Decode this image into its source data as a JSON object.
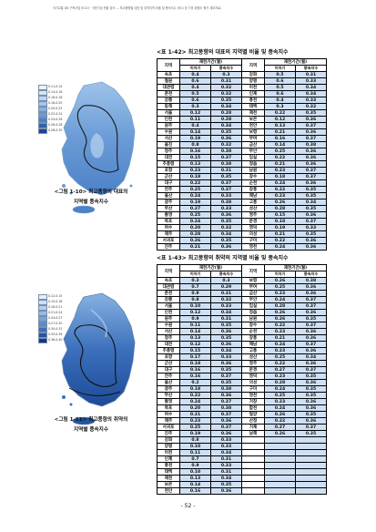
{
  "header_text": "국가교통 DB 구축사업 보고서 · 극한기상 현황 분석 — 최고풍향별 대표 및 취약지역 비율 및 풍속지수 (제 4 장 기후 위험도 평가 세부자료)",
  "section_a": {
    "table_title": "<표 1-42> 최고풍향의 대표의 지역별 비율 및 풍속지수",
    "caption_line1": "<그림 1-10> 최고풍향의 대표의",
    "caption_line2": "지역별 풍속지수",
    "legend": [
      "0.11-0.14",
      "0.14-0.16",
      "0.16-0.18",
      "0.18-0.20",
      "0.20-0.22",
      "0.22-0.24",
      "0.24-0.26",
      "0.26-0.28",
      "0.28-0.30"
    ],
    "legend_colors": [
      "#eaf2fb",
      "#d4e5f6",
      "#bcd6f0",
      "#a4c6ea",
      "#86b1e1",
      "#6a9bd6",
      "#4c82c8",
      "#2e63b2",
      "#17439a"
    ],
    "headers": {
      "region": "지역",
      "group": "재현기간(월)",
      "sub1": "이어기",
      "sub2": "풍속지수"
    },
    "left_rows": [
      [
        "속초",
        "0.4",
        "0.3"
      ],
      [
        "철원",
        "0.6",
        "0.31"
      ],
      [
        "대관령",
        "0.4",
        "0.32"
      ],
      [
        "춘천",
        "0.5",
        "0.32"
      ],
      [
        "강릉",
        "0.6",
        "0.35"
      ],
      [
        "동해",
        "0.3",
        "0.34"
      ],
      [
        "서울",
        "0.12",
        "0.28"
      ],
      [
        "인천",
        "0.11",
        "0.28"
      ],
      [
        "원주",
        "0.4",
        "0.34"
      ],
      [
        "수원",
        "0.14",
        "0.35"
      ],
      [
        "서산",
        "0.19",
        "0.36"
      ],
      [
        "울진",
        "0.8",
        "0.32"
      ],
      [
        "청주",
        "0.16",
        "0.38"
      ],
      [
        "대전",
        "0.15",
        "0.37"
      ],
      [
        "추풍령",
        "0.13",
        "0.38"
      ],
      [
        "포항",
        "0.23",
        "0.31"
      ],
      [
        "군산",
        "0.18",
        "0.35"
      ],
      [
        "대구",
        "0.22",
        "0.37"
      ],
      [
        "전주",
        "0.25",
        "0.37"
      ],
      [
        "울산",
        "0.24",
        "0.33"
      ],
      [
        "광주",
        "0.19",
        "0.38"
      ],
      [
        "부산",
        "0.27",
        "0.33"
      ],
      [
        "통영",
        "0.25",
        "0.36"
      ],
      [
        "목포",
        "0.24",
        "0.35"
      ],
      [
        "여수",
        "0.20",
        "0.32"
      ],
      [
        "제주",
        "0.28",
        "0.34"
      ],
      [
        "서귀포",
        "0.26",
        "0.35"
      ],
      [
        "진주",
        "0.21",
        "0.36"
      ]
    ],
    "right_rows": [
      [
        "강화",
        "0.5",
        "0.31"
      ],
      [
        "양평",
        "0.6",
        "0.33"
      ],
      [
        "이천",
        "0.5",
        "0.34"
      ],
      [
        "인제",
        "0.6",
        "0.34"
      ],
      [
        "홍천",
        "0.4",
        "0.33"
      ],
      [
        "태백",
        "0.3",
        "0.32"
      ],
      [
        "제천",
        "0.22",
        "0.35"
      ],
      [
        "보은",
        "0.12",
        "0.36"
      ],
      [
        "천안",
        "0.13",
        "0.37"
      ],
      [
        "보령",
        "0.21",
        "0.36"
      ],
      [
        "부여",
        "0.16",
        "0.37"
      ],
      [
        "금산",
        "0.14",
        "0.38"
      ],
      [
        "부안",
        "0.25",
        "0.36"
      ],
      [
        "임실",
        "0.22",
        "0.36"
      ],
      [
        "정읍",
        "0.21",
        "0.36"
      ],
      [
        "남원",
        "0.23",
        "0.37"
      ],
      [
        "장수",
        "0.18",
        "0.37"
      ],
      [
        "순천",
        "0.24",
        "0.36"
      ],
      [
        "장흥",
        "0.22",
        "0.35"
      ],
      [
        "해남",
        "0.23",
        "0.35"
      ],
      [
        "고흥",
        "0.26",
        "0.34"
      ],
      [
        "성산",
        "0.28",
        "0.35"
      ],
      [
        "영주",
        "0.15",
        "0.36"
      ],
      [
        "문경",
        "0.18",
        "0.37"
      ],
      [
        "영덕",
        "0.19",
        "0.33"
      ],
      [
        "의성",
        "0.21",
        "0.35"
      ],
      [
        "구미",
        "0.22",
        "0.36"
      ],
      [
        "영천",
        "0.24",
        "0.36"
      ]
    ]
  },
  "section_b": {
    "table_title": "<표 1-43> 최고풍향의 취약의 지역별 비율 및 풍속지수",
    "caption_line1": "<그림 1-11> 최고풍향의 취약의",
    "caption_line2": "지역별 풍속지수",
    "legend": [
      "0.12-0.15",
      "0.15-0.18",
      "0.18-0.21",
      "0.21-0.24",
      "0.24-0.27",
      "0.27-0.30",
      "0.30-0.33",
      "0.33-0.36",
      "0.36-0.40"
    ],
    "legend_colors": [
      "#e6f0fa",
      "#cde0f5",
      "#b2cfee",
      "#94bbe6",
      "#76a5db",
      "#588ccd",
      "#3c70bb",
      "#2454a4",
      "#0f3987"
    ],
    "headers": {
      "region": "지역",
      "group": "재현기간(월)",
      "sub1": "이어기",
      "sub2": "풍속지수"
    },
    "left_rows": [
      [
        "속초",
        "0.3",
        "0.3"
      ],
      [
        "대관령",
        "0.7",
        "0.29"
      ],
      [
        "춘천",
        "0.9",
        "0.31"
      ],
      [
        "강릉",
        "0.8",
        "0.32"
      ],
      [
        "서울",
        "0.10",
        "0.33"
      ],
      [
        "인천",
        "0.12",
        "0.34"
      ],
      [
        "원주",
        "0.9",
        "0.31"
      ],
      [
        "수원",
        "0.11",
        "0.35"
      ],
      [
        "서산",
        "0.14",
        "0.36"
      ],
      [
        "청주",
        "0.13",
        "0.35"
      ],
      [
        "대전",
        "0.12",
        "0.36"
      ],
      [
        "추풍령",
        "0.15",
        "0.34"
      ],
      [
        "포항",
        "0.17",
        "0.33"
      ],
      [
        "군산",
        "0.18",
        "0.36"
      ],
      [
        "대구",
        "0.16",
        "0.35"
      ],
      [
        "전주",
        "0.16",
        "0.37"
      ],
      [
        "울산",
        "0.2",
        "0.35"
      ],
      [
        "광주",
        "0.18",
        "0.38"
      ],
      [
        "부산",
        "0.22",
        "0.36"
      ],
      [
        "통영",
        "0.24",
        "0.37"
      ],
      [
        "목포",
        "0.20",
        "0.38"
      ],
      [
        "여수",
        "0.21",
        "0.37"
      ],
      [
        "제주",
        "0.23",
        "0.36"
      ],
      [
        "서귀포",
        "0.25",
        "0.37"
      ],
      [
        "진주",
        "0.19",
        "0.36"
      ],
      [
        "강화",
        "0.8",
        "0.33"
      ],
      [
        "양평",
        "0.10",
        "0.33"
      ],
      [
        "이천",
        "0.11",
        "0.34"
      ],
      [
        "인제",
        "0.7",
        "0.31"
      ],
      [
        "홍천",
        "0.9",
        "0.33"
      ],
      [
        "태백",
        "0.10",
        "0.31"
      ],
      [
        "제천",
        "0.13",
        "0.34"
      ],
      [
        "보은",
        "0.14",
        "0.35"
      ],
      [
        "천안",
        "0.16",
        "0.36"
      ]
    ],
    "right_rows": [
      [
        "보령",
        "0.26",
        "0.38"
      ],
      [
        "부여",
        "0.25",
        "0.36"
      ],
      [
        "금산",
        "0.23",
        "0.36"
      ],
      [
        "부안",
        "0.24",
        "0.37"
      ],
      [
        "임실",
        "0.28",
        "0.37"
      ],
      [
        "정읍",
        "0.26",
        "0.36"
      ],
      [
        "남원",
        "0.26",
        "0.35"
      ],
      [
        "장수",
        "0.22",
        "0.37"
      ],
      [
        "순천",
        "0.23",
        "0.36"
      ],
      [
        "장흥",
        "0.21",
        "0.36"
      ],
      [
        "해남",
        "0.24",
        "0.37"
      ],
      [
        "고흥",
        "0.23",
        "0.36"
      ],
      [
        "성산",
        "0.25",
        "0.34"
      ],
      [
        "영주",
        "0.22",
        "0.36"
      ],
      [
        "문경",
        "0.27",
        "0.37"
      ],
      [
        "영덕",
        "0.23",
        "0.35"
      ],
      [
        "의성",
        "0.28",
        "0.36"
      ],
      [
        "구미",
        "0.24",
        "0.35"
      ],
      [
        "영천",
        "0.25",
        "0.35"
      ],
      [
        "거창",
        "0.23",
        "0.36"
      ],
      [
        "합천",
        "0.24",
        "0.36"
      ],
      [
        "밀양",
        "0.26",
        "0.35"
      ],
      [
        "산청",
        "0.22",
        "0.36"
      ],
      [
        "거제",
        "0.27",
        "0.37"
      ],
      [
        "남해",
        "0.26",
        "0.35"
      ]
    ]
  },
  "page_number": "- 52 -"
}
